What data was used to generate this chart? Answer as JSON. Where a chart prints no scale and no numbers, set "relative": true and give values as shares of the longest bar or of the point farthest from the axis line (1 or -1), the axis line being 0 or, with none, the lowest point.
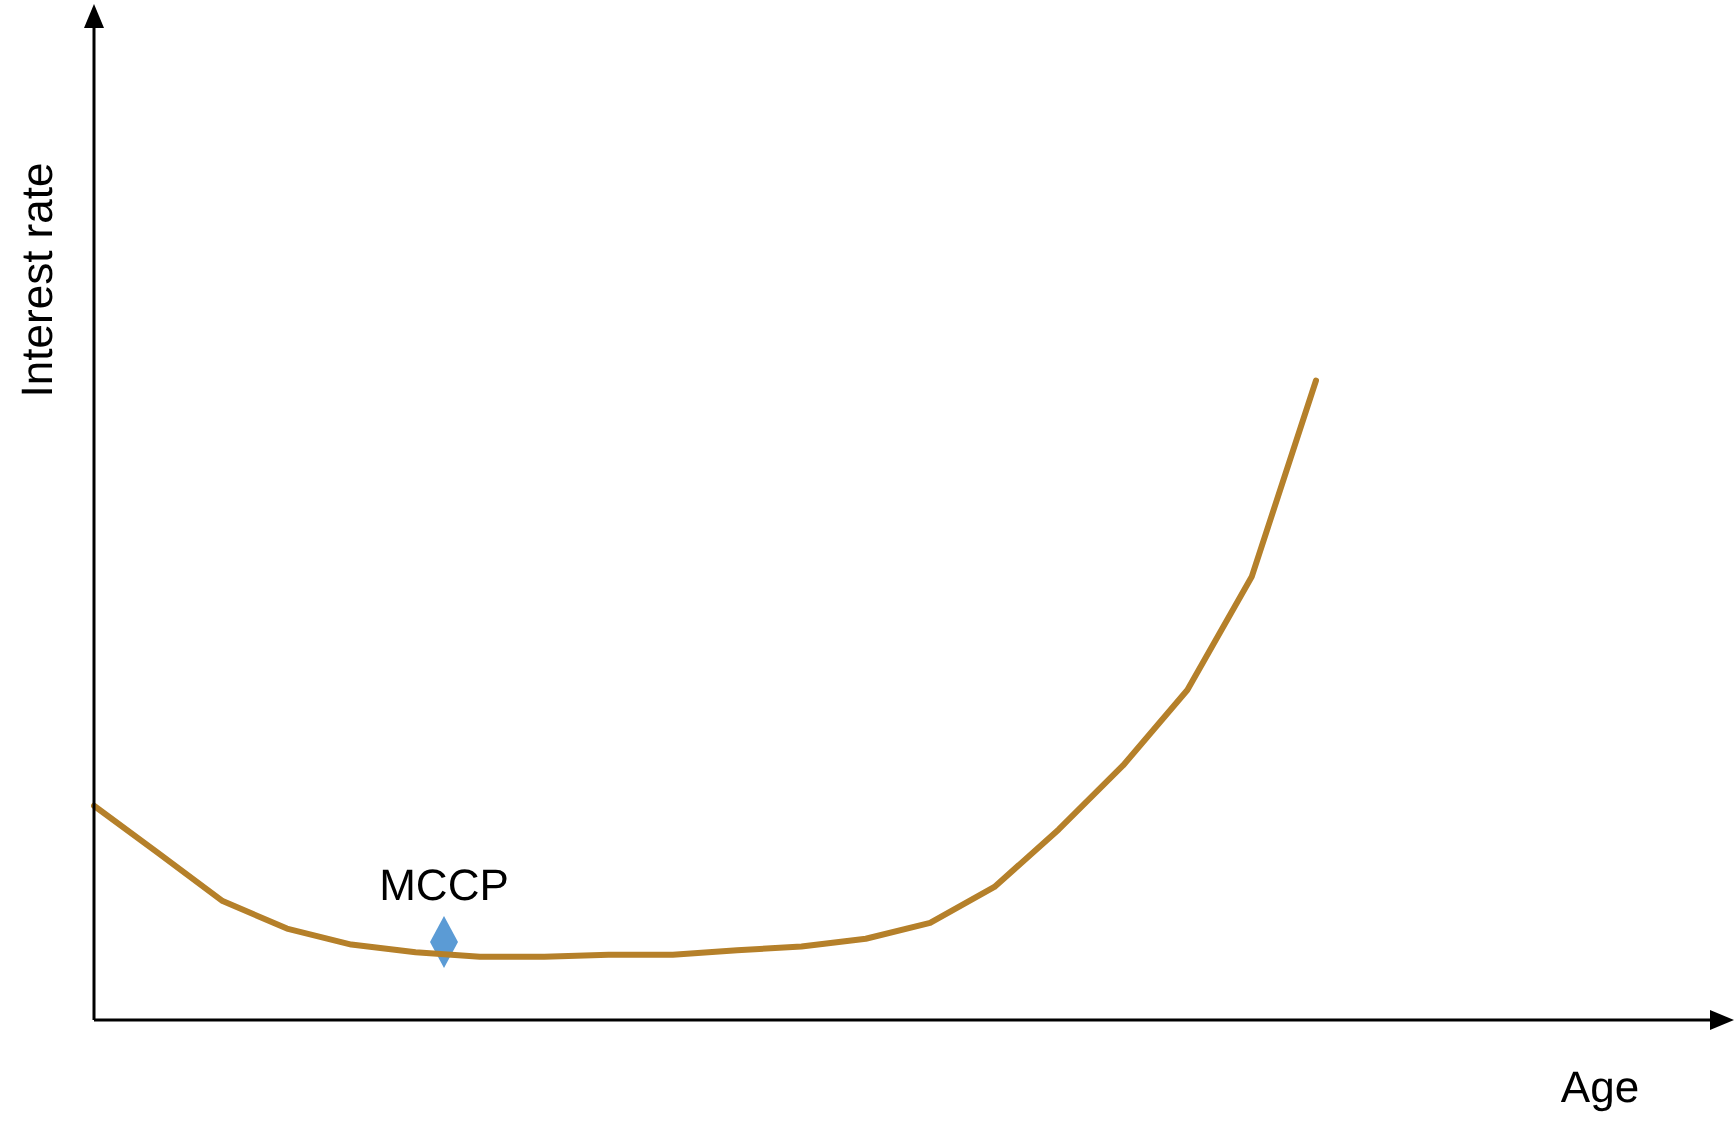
{
  "chart_data": {
    "type": "line",
    "relative": true,
    "xlabel": "Age",
    "ylabel": "Interest rate",
    "legend": false,
    "annotations": [
      "MCCP"
    ],
    "categories": [
      null,
      null,
      null,
      null,
      null,
      null,
      null,
      null,
      null,
      null,
      null,
      null,
      null,
      null,
      null,
      null,
      null,
      null,
      null,
      null
    ],
    "series": [
      {
        "color": "#b5802a",
        "values": [
          0.335,
          0.261,
          0.186,
          0.143,
          0.118,
          0.106,
          0.099,
          0.099,
          0.102,
          0.102,
          0.109,
          0.115,
          0.127,
          0.152,
          0.208,
          0.298,
          0.398,
          0.516,
          0.693,
          1
        ]
      }
    ]
  }
}
